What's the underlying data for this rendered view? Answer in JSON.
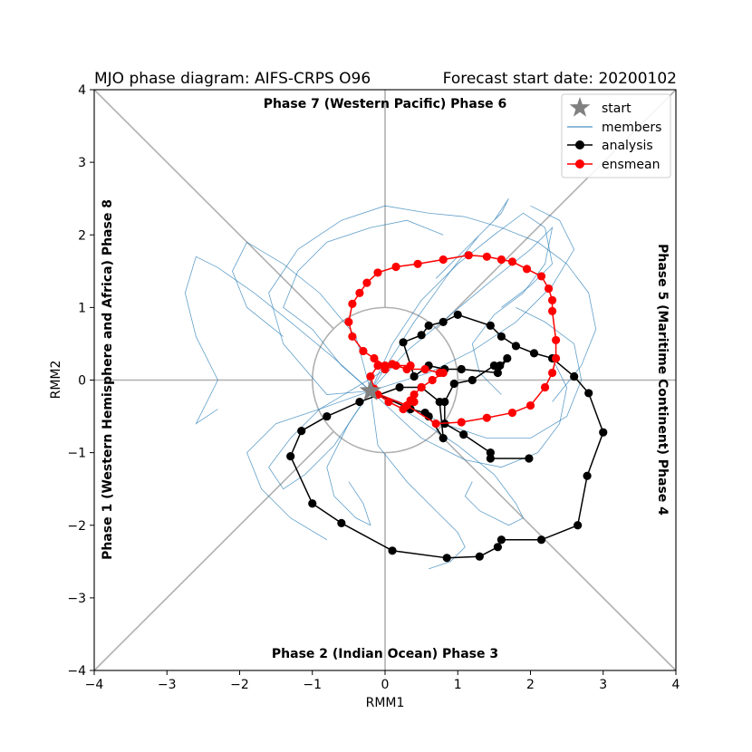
{
  "chart_data": {
    "type": "line",
    "title_left": "MJO phase diagram: AIFS-CRPS O96",
    "title_right": "Forecast start date: 20200102",
    "xlabel": "RMM1",
    "ylabel": "RMM2",
    "xlim": [
      -4,
      4
    ],
    "ylim": [
      -4,
      4
    ],
    "xticks": [
      -4,
      -3,
      -2,
      -1,
      0,
      1,
      2,
      3,
      4
    ],
    "yticks": [
      -4,
      -3,
      -2,
      -1,
      0,
      1,
      2,
      3,
      4
    ],
    "xtick_labels": [
      "−4",
      "−3",
      "−2",
      "−1",
      "0",
      "1",
      "2",
      "3",
      "4"
    ],
    "ytick_labels": [
      "−4",
      "−3",
      "−2",
      "−1",
      "0",
      "1",
      "2",
      "3",
      "4"
    ],
    "phase_labels": {
      "top": "Phase 7 (Western Pacific) Phase 6",
      "bottom": "Phase 2 (Indian Ocean) Phase 3",
      "left": "Phase 1 (Western Hemisphere and Africa) Phase 8",
      "right": "Phase 5 (Maritime Continent) Phase 4"
    },
    "legend_position": "upper right",
    "legend": [
      {
        "label": "start",
        "marker": "star",
        "color": "#808080"
      },
      {
        "label": "members",
        "marker": "line",
        "color": "#1f77b4"
      },
      {
        "label": "analysis",
        "marker": "circle-line",
        "color": "#000000"
      },
      {
        "label": "ensmean",
        "marker": "circle-line",
        "color": "#ff0000"
      }
    ],
    "start": [
      -0.2,
      -0.15
    ],
    "colors": {
      "members": "#1f77b4",
      "analysis": "#000000",
      "ensmean": "#ff0000",
      "start": "#808080",
      "guides": "#b0b0b0"
    },
    "analysis": {
      "x": [
        -0.2,
        0.35,
        0.55,
        0.6,
        0.8,
        0.75,
        0.5,
        0.2,
        -0.35,
        -0.8,
        -1.15,
        -1.3,
        -1.0,
        -0.6,
        0.1,
        0.85,
        1.3,
        1.55,
        1.6,
        2.15,
        2.65,
        2.78,
        3.0,
        2.8,
        2.6,
        2.3,
        2.05,
        1.8,
        1.6,
        1.45,
        1.0,
        0.8,
        0.6,
        0.5,
        0.25,
        0.4,
        0.6,
        0.82,
        1.05,
        1.55,
        1.68,
        1.58,
        1.5,
        1.2,
        0.95,
        0.82,
        0.82,
        1.08,
        1.45,
        1.45,
        1.98
      ],
      "y": [
        -0.15,
        -0.4,
        -0.45,
        -0.5,
        -0.8,
        -0.3,
        -0.1,
        -0.1,
        -0.3,
        -0.5,
        -0.7,
        -1.05,
        -1.7,
        -1.97,
        -2.35,
        -2.45,
        -2.43,
        -2.3,
        -2.2,
        -2.2,
        -2.0,
        -1.32,
        -0.72,
        -0.18,
        0.05,
        0.3,
        0.37,
        0.47,
        0.6,
        0.75,
        0.9,
        0.8,
        0.75,
        0.62,
        0.52,
        0.05,
        0.2,
        0.15,
        0.15,
        0.1,
        0.3,
        0.2,
        0.2,
        0.0,
        -0.05,
        -0.3,
        -0.6,
        -0.75,
        -1.0,
        -1.08,
        -1.08
      ]
    },
    "ensmean": {
      "x": [
        -0.2,
        0.3,
        0.7,
        1.05,
        1.4,
        1.75,
        2.0,
        2.2,
        2.3,
        2.35,
        2.35,
        2.3,
        2.3,
        2.25,
        2.15,
        1.95,
        1.75,
        1.6,
        1.4,
        1.15,
        0.8,
        0.45,
        0.15,
        -0.1,
        -0.25,
        -0.35,
        -0.45,
        -0.5,
        -0.45,
        -0.3,
        -0.15,
        0.0,
        0.1,
        0.3,
        0.55,
        0.75,
        0.8,
        0.65,
        0.5,
        0.4,
        0.35,
        0.4,
        0.25,
        0.05,
        -0.1,
        -0.15,
        -0.2,
        -0.1,
        0.0,
        0.15,
        0.35
      ],
      "y": [
        -0.15,
        -0.35,
        -0.6,
        -0.58,
        -0.52,
        -0.45,
        -0.35,
        -0.1,
        0.1,
        0.3,
        0.55,
        0.95,
        1.1,
        1.26,
        1.43,
        1.53,
        1.63,
        1.66,
        1.7,
        1.72,
        1.66,
        1.6,
        1.56,
        1.48,
        1.34,
        1.2,
        1.05,
        0.8,
        0.6,
        0.4,
        0.3,
        0.2,
        0.22,
        0.15,
        0.15,
        0.1,
        0.1,
        0.0,
        -0.1,
        -0.2,
        -0.28,
        -0.3,
        -0.4,
        -0.3,
        -0.2,
        -0.12,
        0.05,
        0.2,
        0.15,
        0.2,
        0.2
      ]
    },
    "members": [
      {
        "x": [
          -0.2,
          -0.7,
          -1.3,
          -1.8,
          -2.3,
          -2.6,
          -2.75,
          -2.6,
          -2.3,
          -2.5,
          -2.6,
          -2.3
        ],
        "y": [
          -0.15,
          0.3,
          0.8,
          1.2,
          1.55,
          1.7,
          1.2,
          0.6,
          0.0,
          -0.4,
          -0.6,
          -0.4
        ]
      },
      {
        "x": [
          -0.2,
          -0.8,
          -1.4,
          -1.6,
          -1.2,
          -0.6,
          0.0,
          0.6,
          1.1,
          1.6,
          2.1,
          2.5,
          2.8,
          2.9,
          2.7,
          2.3
        ],
        "y": [
          -0.15,
          -0.2,
          0.5,
          1.2,
          1.8,
          2.2,
          2.4,
          2.3,
          2.25,
          2.1,
          1.9,
          1.6,
          1.2,
          0.7,
          0.2,
          -0.3
        ]
      },
      {
        "x": [
          -0.2,
          -0.5,
          -0.8,
          -0.7,
          -0.4,
          -0.2,
          -0.3,
          -0.5
        ],
        "y": [
          -0.15,
          -0.6,
          -1.2,
          -1.6,
          -1.9,
          -2.0,
          -1.7,
          -1.4
        ]
      },
      {
        "x": [
          -0.2,
          0.4,
          1.0,
          1.5,
          1.8,
          1.9,
          1.7,
          1.3,
          1.1,
          1.2
        ],
        "y": [
          -0.15,
          -0.5,
          -0.9,
          -1.3,
          -1.7,
          -1.9,
          -2.0,
          -1.8,
          -1.6,
          -1.4
        ]
      },
      {
        "x": [
          -0.2,
          0.3,
          0.9,
          1.5,
          2.0,
          2.3,
          2.2,
          1.9,
          1.5,
          1.2,
          1.3,
          1.6
        ],
        "y": [
          -0.15,
          0.4,
          0.9,
          1.4,
          1.8,
          2.1,
          1.6,
          1.2,
          0.9,
          0.5,
          0.1,
          -0.2
        ]
      },
      {
        "x": [
          -0.2,
          -0.6,
          -1.0,
          -1.4,
          -1.2,
          -0.8,
          -0.2,
          0.3,
          0.8
        ],
        "y": [
          -0.15,
          0.2,
          0.7,
          1.0,
          1.5,
          1.9,
          2.1,
          2.2,
          2.0
        ]
      },
      {
        "x": [
          -0.2,
          0.2,
          0.8,
          1.4,
          2.0,
          2.5,
          2.7,
          2.6,
          2.2,
          1.8
        ],
        "y": [
          -0.15,
          -0.3,
          -0.6,
          -0.8,
          -0.8,
          -0.5,
          0.0,
          0.5,
          0.8,
          1.0
        ]
      },
      {
        "x": [
          -0.2,
          -0.9,
          -1.5,
          -1.9,
          -1.7,
          -1.3,
          -0.8
        ],
        "y": [
          -0.15,
          -0.4,
          -0.6,
          -1.0,
          -1.5,
          -1.9,
          -2.2
        ]
      },
      {
        "x": [
          -0.2,
          0.1,
          0.5,
          1.0,
          1.5,
          1.9,
          2.2,
          2.3,
          2.0,
          1.6
        ],
        "y": [
          -0.15,
          0.5,
          1.1,
          1.6,
          2.0,
          2.3,
          2.1,
          1.6,
          1.3,
          1.0
        ]
      },
      {
        "x": [
          -0.2,
          -0.4,
          -0.9,
          -1.4,
          -1.9,
          -2.1,
          -1.9,
          -1.4
        ],
        "y": [
          -0.15,
          0.6,
          1.2,
          1.6,
          1.9,
          1.5,
          1.0,
          0.6
        ]
      },
      {
        "x": [
          -0.2,
          0.5,
          1.1,
          1.6,
          2.1,
          2.4,
          2.5,
          2.3
        ],
        "y": [
          -0.15,
          -0.8,
          -1.1,
          -1.2,
          -1.0,
          -0.6,
          -0.1,
          0.3
        ]
      },
      {
        "x": [
          -0.2,
          -0.1,
          0.3,
          0.7,
          1.0,
          1.1,
          0.9,
          0.6
        ],
        "y": [
          -0.15,
          -0.9,
          -1.4,
          -1.8,
          -2.1,
          -2.3,
          -2.5,
          -2.6
        ]
      },
      {
        "x": [
          -0.2,
          0.4,
          0.9,
          1.3,
          1.6,
          1.7,
          1.5,
          1.1,
          0.7
        ],
        "y": [
          -0.15,
          0.8,
          1.5,
          2.0,
          2.3,
          2.5,
          2.2,
          1.8,
          1.4
        ]
      },
      {
        "x": [
          -0.2,
          -0.7,
          -1.1,
          -1.4,
          -1.6,
          -1.3,
          -0.9,
          -0.4,
          0.1
        ],
        "y": [
          -0.15,
          -0.9,
          -1.3,
          -1.5,
          -1.2,
          -0.8,
          -0.4,
          -0.1,
          0.2
        ]
      },
      {
        "x": [
          -0.2,
          0.6,
          1.2,
          1.8,
          2.3,
          2.6,
          2.4,
          2.0
        ],
        "y": [
          -0.15,
          0.1,
          0.4,
          0.8,
          1.3,
          1.8,
          2.2,
          2.4
        ]
      }
    ]
  }
}
